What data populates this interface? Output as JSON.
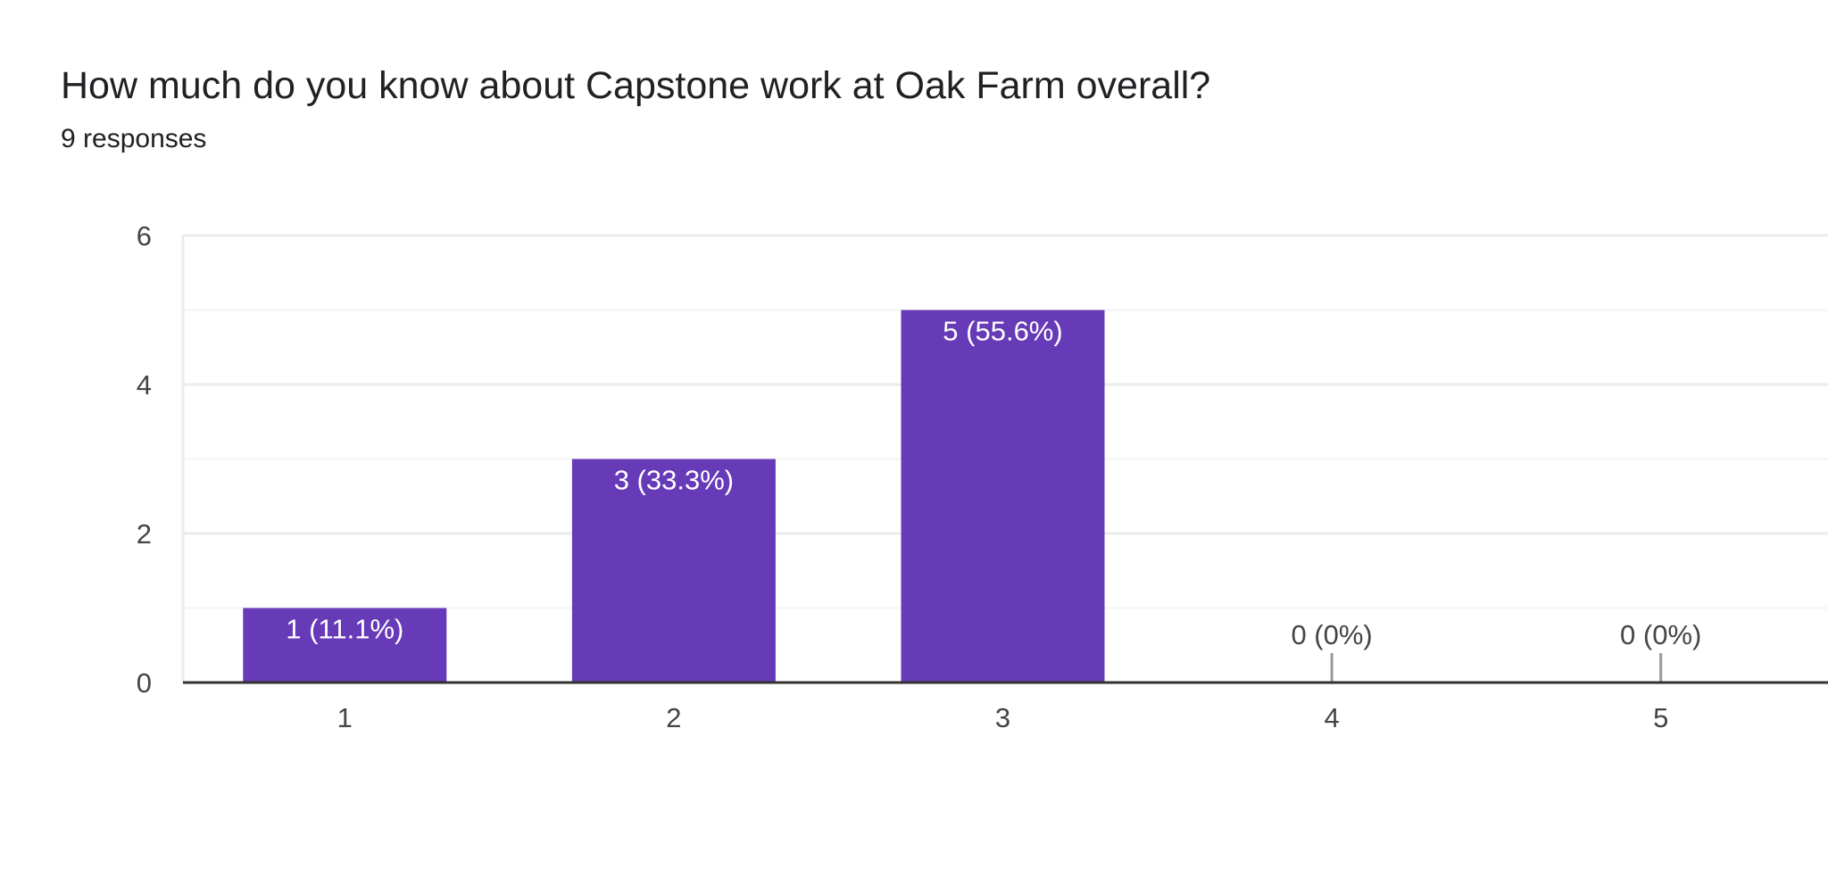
{
  "question": {
    "title": "How much do you know about Capstone work at Oak Farm overall?",
    "responses": "9 responses"
  },
  "colors": {
    "bar": "#673ab7",
    "gridline": "#ebebeb",
    "minor_gridline": "#f3f3f3",
    "baseline": "#333333",
    "tick_text": "#444444",
    "label_inside": "#ffffff",
    "label_outside": "#444444",
    "zero_marker": "#999999"
  },
  "chart_data": {
    "type": "bar",
    "categories": [
      "1",
      "2",
      "3",
      "4",
      "5"
    ],
    "values": [
      1,
      3,
      5,
      0,
      0
    ],
    "data_labels": [
      "1 (11.1%)",
      "3 (33.3%)",
      "5 (55.6%)",
      "0 (0%)",
      "0 (0%)"
    ],
    "ylim": [
      0,
      6
    ],
    "yticks": [
      "0",
      "2",
      "4",
      "6"
    ],
    "minor_grid": true,
    "xlabel": "",
    "ylabel": ""
  }
}
